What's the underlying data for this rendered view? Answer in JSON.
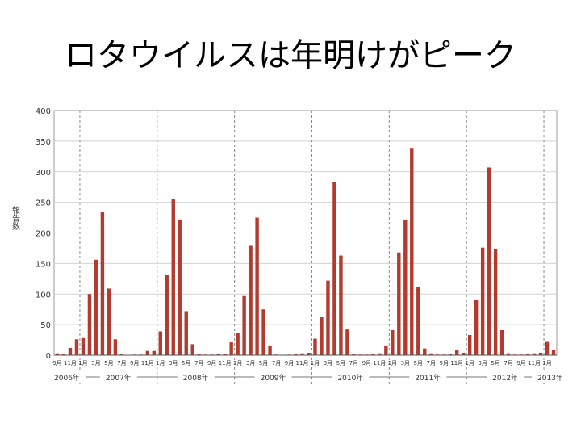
{
  "title": "ロタウイルスは年明けがピーク",
  "chart_data": {
    "type": "bar",
    "ylabel": "報告数",
    "xlabel": "",
    "ylim": [
      0,
      400
    ],
    "yticks": [
      0,
      50,
      100,
      150,
      200,
      250,
      300,
      350,
      400
    ],
    "grid": "horizontal",
    "bar_color": "#b23a2e",
    "start_month": "2006-09",
    "values": [
      3,
      2,
      12,
      26,
      28,
      100,
      156,
      234,
      109,
      26,
      2,
      0,
      1,
      1,
      7,
      7,
      39,
      131,
      256,
      222,
      72,
      18,
      2,
      1,
      1,
      2,
      2,
      21,
      36,
      98,
      179,
      225,
      75,
      16,
      1,
      0,
      1,
      2,
      3,
      4,
      27,
      62,
      122,
      283,
      163,
      42,
      2,
      1,
      1,
      2,
      3,
      16,
      41,
      168,
      221,
      339,
      112,
      11,
      3,
      1,
      1,
      2,
      9,
      4,
      33,
      90,
      176,
      307,
      174,
      41,
      3,
      1,
      1,
      2,
      3,
      4,
      23,
      8
    ],
    "month_tick_labels": [
      "9月",
      "11月",
      "1月",
      "3月",
      "5月",
      "7月"
    ],
    "year_labels": [
      "2006年",
      "2007年",
      "2008年",
      "2009年",
      "2010年",
      "2011年",
      "2012年",
      "2013年"
    ]
  }
}
